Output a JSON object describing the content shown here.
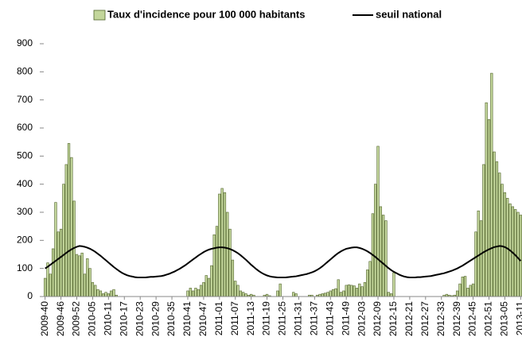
{
  "chart_data": {
    "type": "bar",
    "categories": [
      "2009-40",
      null,
      null,
      null,
      null,
      null,
      "2009-46",
      null,
      null,
      null,
      null,
      null,
      "2009-52",
      null,
      null,
      null,
      null,
      null,
      "2010-05",
      null,
      null,
      null,
      null,
      null,
      "2010-11",
      null,
      null,
      null,
      null,
      null,
      "2010-17",
      null,
      null,
      null,
      null,
      null,
      "2010-23",
      null,
      null,
      null,
      null,
      null,
      "2010-29",
      null,
      null,
      null,
      null,
      null,
      "2010-35",
      null,
      null,
      null,
      null,
      null,
      "2010-41",
      null,
      null,
      null,
      null,
      null,
      "2010-47",
      null,
      null,
      null,
      null,
      null,
      "2011-01",
      null,
      null,
      null,
      null,
      null,
      "2011-07",
      null,
      null,
      null,
      null,
      null,
      "2011-13",
      null,
      null,
      null,
      null,
      null,
      "2011-19",
      null,
      null,
      null,
      null,
      null,
      "2011-25",
      null,
      null,
      null,
      null,
      null,
      "2011-31",
      null,
      null,
      null,
      null,
      null,
      "2011-37",
      null,
      null,
      null,
      null,
      null,
      "2011-43",
      null,
      null,
      null,
      null,
      null,
      "2011-49",
      null,
      null,
      null,
      null,
      null,
      "2012-03",
      null,
      null,
      null,
      null,
      null,
      "2012-09",
      null,
      null,
      null,
      null,
      null,
      "2012-15",
      null,
      null,
      null,
      null,
      null,
      "2012-21",
      null,
      null,
      null,
      null,
      null,
      "2012-27",
      null,
      null,
      null,
      null,
      null,
      "2012-33",
      null,
      null,
      null,
      null,
      null,
      "2012-39",
      null,
      null,
      null,
      null,
      null,
      "2012-45",
      null,
      null,
      null,
      null,
      null,
      "2012-51",
      null,
      null,
      null,
      null,
      null,
      "2013-05",
      null,
      null,
      null,
      null,
      null,
      "2013-11"
    ],
    "series": [
      {
        "name": "Taux d'incidence pour 100 000 habitants",
        "type": "bar",
        "color": "#c3d69b",
        "values": [
          65,
          120,
          80,
          170,
          335,
          230,
          240,
          400,
          470,
          545,
          495,
          340,
          150,
          145,
          155,
          80,
          135,
          100,
          50,
          40,
          25,
          20,
          10,
          15,
          10,
          20,
          25,
          5,
          0,
          0,
          0,
          0,
          0,
          0,
          0,
          0,
          0,
          0,
          0,
          0,
          0,
          0,
          0,
          0,
          0,
          0,
          0,
          0,
          0,
          0,
          0,
          0,
          0,
          0,
          20,
          30,
          20,
          30,
          25,
          40,
          50,
          75,
          65,
          110,
          220,
          250,
          365,
          385,
          370,
          300,
          240,
          130,
          55,
          40,
          20,
          15,
          10,
          5,
          8,
          5,
          0,
          0,
          0,
          5,
          8,
          3,
          0,
          0,
          20,
          45,
          0,
          0,
          0,
          0,
          15,
          10,
          0,
          0,
          0,
          0,
          5,
          5,
          0,
          5,
          8,
          10,
          12,
          15,
          20,
          25,
          28,
          60,
          15,
          20,
          40,
          42,
          40,
          38,
          30,
          45,
          35,
          50,
          95,
          125,
          295,
          400,
          535,
          320,
          290,
          270,
          15,
          10,
          85,
          0,
          0,
          0,
          0,
          0,
          0,
          0,
          0,
          0,
          0,
          0,
          0,
          0,
          0,
          0,
          0,
          0,
          0,
          5,
          8,
          5,
          3,
          5,
          20,
          45,
          70,
          72,
          30,
          40,
          45,
          230,
          305,
          270,
          470,
          690,
          630,
          795,
          515,
          480,
          440,
          400,
          370,
          350,
          330,
          320,
          310,
          300,
          290
        ]
      },
      {
        "name": "seuil national",
        "type": "line",
        "color": "#000000",
        "values": [
          100,
          106,
          113,
          120,
          127,
          134,
          141,
          148,
          155,
          162,
          168,
          173,
          177,
          180,
          179,
          177,
          174,
          170,
          165,
          159,
          152,
          145,
          137,
          129,
          121,
          113,
          105,
          98,
          91,
          85,
          80,
          76,
          73,
          71,
          69,
          68,
          68,
          68,
          68,
          69,
          70,
          70,
          71,
          72,
          73,
          75,
          78,
          81,
          85,
          89,
          94,
          99,
          105,
          111,
          118,
          125,
          132,
          139,
          146,
          152,
          158,
          163,
          167,
          170,
          172,
          174,
          175,
          175,
          174,
          172,
          169,
          165,
          160,
          154,
          147,
          139,
          131,
          122,
          113,
          105,
          97,
          90,
          84,
          79,
          75,
          72,
          70,
          69,
          68,
          68,
          68,
          68,
          69,
          70,
          71,
          72,
          74,
          76,
          78,
          80,
          83,
          86,
          90,
          95,
          101,
          108,
          116,
          124,
          132,
          140,
          148,
          155,
          161,
          166,
          170,
          172,
          174,
          175,
          175,
          173,
          170,
          166,
          161,
          155,
          148,
          141,
          133,
          125,
          117,
          109,
          101,
          94,
          88,
          83,
          78,
          74,
          71,
          69,
          68,
          68,
          68,
          69,
          69,
          70,
          71,
          72,
          73,
          75,
          77,
          79,
          81,
          83,
          86,
          89,
          92,
          96,
          100,
          105,
          110,
          116,
          122,
          128,
          134,
          140,
          146,
          152,
          158,
          163,
          168,
          172,
          176,
          178,
          180,
          179,
          176,
          171,
          164,
          156,
          147,
          137,
          127
        ]
      }
    ],
    "ylim": [
      0,
      900
    ],
    "yticks": [
      0,
      100,
      200,
      300,
      400,
      500,
      600,
      700,
      800,
      900
    ],
    "grid": false,
    "legend": "top"
  }
}
